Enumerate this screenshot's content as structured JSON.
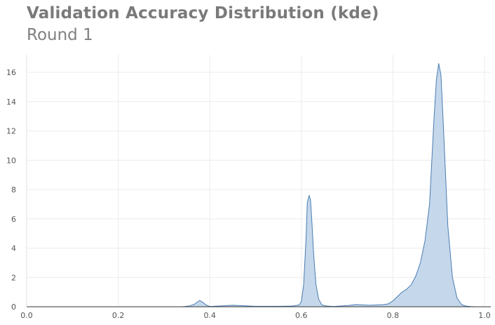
{
  "chart_data": {
    "type": "area",
    "title": "Validation Accuracy Distribution (kde)",
    "subtitle": "Round 1",
    "xlabel": "",
    "ylabel": "",
    "xlim": [
      0.0,
      1.0
    ],
    "ylim": [
      0,
      17.2
    ],
    "x_ticks": [
      0.0,
      0.2,
      0.4,
      0.6,
      0.8,
      1.0
    ],
    "x_tick_labels": [
      "0.0",
      "0.2",
      "0.4",
      "0.6",
      "0.8",
      "1.0"
    ],
    "y_ticks": [
      0,
      2,
      4,
      6,
      8,
      10,
      12,
      14,
      16
    ],
    "y_tick_labels": [
      "0",
      "2",
      "4",
      "6",
      "8",
      "10",
      "12",
      "14",
      "16"
    ],
    "grid": true,
    "legend": "none",
    "colors": {
      "fill": "#c5d7ea",
      "line": "#4a7db3",
      "grid": "#ececec",
      "axis": "#333333"
    },
    "series": [
      {
        "x": [
          0.34,
          0.355,
          0.365,
          0.372,
          0.378,
          0.385,
          0.392,
          0.4,
          0.42,
          0.45,
          0.47,
          0.5,
          0.55,
          0.58,
          0.595,
          0.6,
          0.605,
          0.61,
          0.613,
          0.617,
          0.62,
          0.623,
          0.627,
          0.632,
          0.638,
          0.645,
          0.655,
          0.67,
          0.7,
          0.72,
          0.75,
          0.78,
          0.79,
          0.8,
          0.81,
          0.82,
          0.83,
          0.84,
          0.85,
          0.86,
          0.87,
          0.88,
          0.885,
          0.89,
          0.895,
          0.9,
          0.905,
          0.91,
          0.915,
          0.92,
          0.93,
          0.94,
          0.95,
          0.96,
          0.97,
          0.98
        ],
        "y": [
          0.0,
          0.05,
          0.15,
          0.3,
          0.42,
          0.3,
          0.12,
          0.02,
          0.05,
          0.1,
          0.07,
          0.03,
          0.03,
          0.05,
          0.12,
          0.35,
          1.5,
          4.5,
          7.1,
          7.6,
          7.3,
          5.8,
          3.5,
          1.5,
          0.5,
          0.12,
          0.05,
          0.02,
          0.08,
          0.15,
          0.1,
          0.15,
          0.2,
          0.4,
          0.7,
          1.0,
          1.2,
          1.5,
          2.1,
          3.0,
          4.5,
          7.0,
          10.0,
          13.0,
          15.5,
          16.6,
          15.8,
          12.5,
          9.0,
          5.5,
          2.0,
          0.6,
          0.15,
          0.04,
          0.01,
          0.0
        ]
      }
    ]
  }
}
